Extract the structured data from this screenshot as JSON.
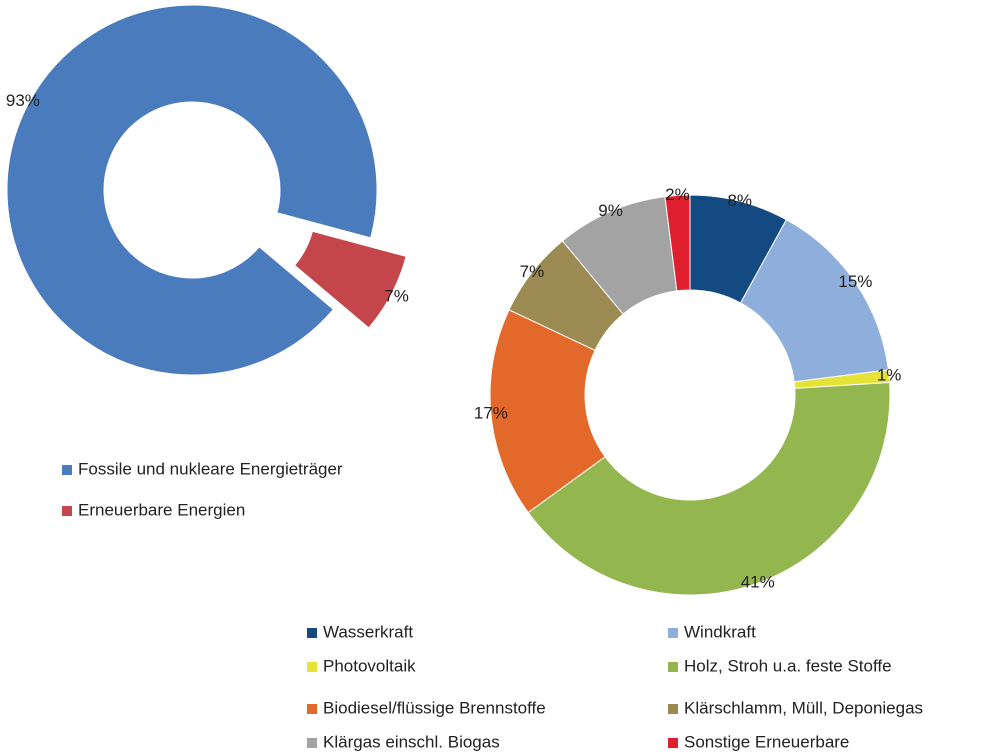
{
  "chart_data": [
    {
      "type": "donut",
      "categories": [
        "Fossile und nukleare Energieträger",
        "Erneuerbare Energien"
      ],
      "values": [
        93,
        7
      ],
      "value_labels": [
        "93%",
        "7%"
      ],
      "colors": [
        "#4a7bbd",
        "#c4464a"
      ]
    },
    {
      "type": "donut",
      "categories": [
        "Wasserkraft",
        "Windkraft",
        "Photovoltaik",
        "Holz, Stroh u.a. feste Stoffe",
        "Biodiesel/flüssige Brennstoffe",
        "Klärschlamm, Müll, Deponiegas",
        "Klärgas einschl. Biogas",
        "Sonstige Erneuerbare"
      ],
      "values": [
        8,
        15,
        1,
        41,
        17,
        7,
        9,
        2
      ],
      "value_labels": [
        "8%",
        "15%",
        "1%",
        "41%",
        "17%",
        "7%",
        "9%",
        "2%"
      ],
      "colors": [
        "#144a82",
        "#8eaedb",
        "#e6e236",
        "#93b74e",
        "#e2692a",
        "#9b8a52",
        "#a3a3a3",
        "#e01f2e"
      ]
    }
  ]
}
